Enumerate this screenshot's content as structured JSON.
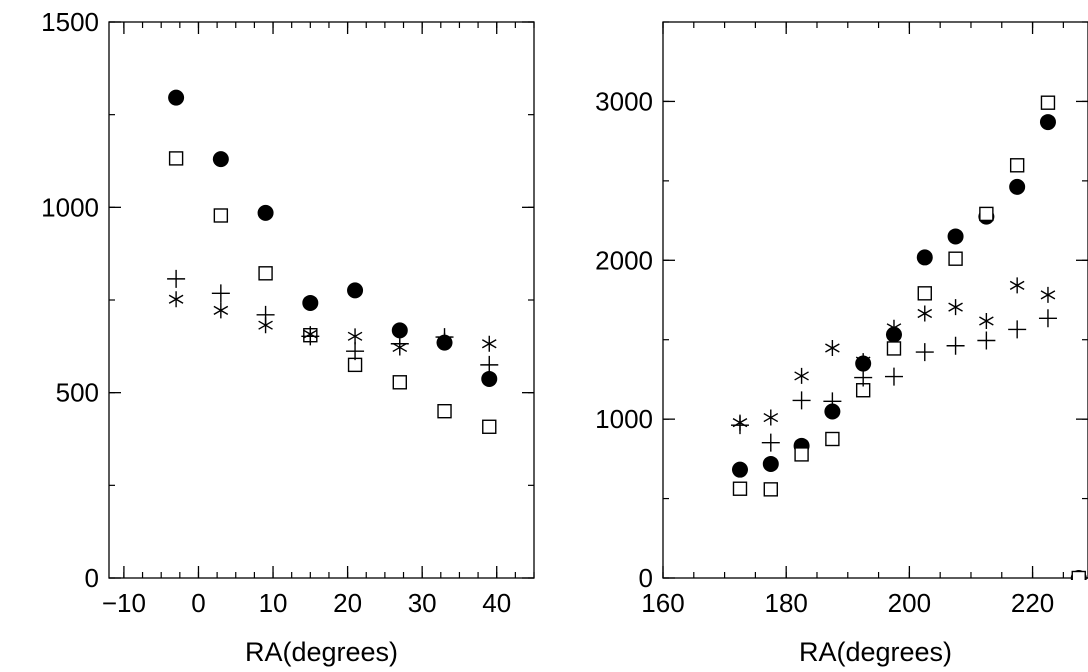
{
  "chart_data": [
    {
      "type": "scatter",
      "title": "",
      "xlabel": "RA(degrees)",
      "ylabel": "",
      "xlim": [
        -12,
        45
      ],
      "ylim": [
        0,
        1500
      ],
      "xticks": [
        -10,
        0,
        10,
        20,
        30,
        40
      ],
      "yticks": [
        0,
        500,
        1000,
        1500
      ],
      "x_minor_step": 2.5,
      "y_minor_step": 250,
      "grid": false,
      "legend": "none",
      "series": [
        {
          "marker": "filled-circle",
          "x": [
            -3,
            3,
            9,
            15,
            21,
            27,
            33,
            39
          ],
          "y": [
            1296,
            1130,
            985,
            742,
            776,
            668,
            635,
            537
          ]
        },
        {
          "marker": "open-square",
          "x": [
            -3,
            3,
            9,
            15,
            21,
            27,
            33,
            39
          ],
          "y": [
            1132,
            978,
            822,
            655,
            575,
            528,
            450,
            408
          ]
        },
        {
          "marker": "plus",
          "x": [
            -3,
            3,
            9,
            15,
            21,
            27,
            33,
            39
          ],
          "y": [
            807,
            768,
            710,
            652,
            612,
            632,
            650,
            575
          ]
        },
        {
          "marker": "asterisk",
          "x": [
            -3,
            3,
            9,
            15,
            21,
            27,
            33,
            39
          ],
          "y": [
            752,
            722,
            682,
            658,
            652,
            622,
            640,
            632
          ]
        }
      ]
    },
    {
      "type": "scatter",
      "title": "",
      "xlabel": "RA(degrees)",
      "ylabel": "",
      "xlim": [
        160,
        229
      ],
      "ylim": [
        0,
        3500
      ],
      "xticks": [
        160,
        180,
        200,
        220
      ],
      "yticks": [
        0,
        1000,
        2000,
        3000
      ],
      "x_minor_step": 5,
      "y_minor_step": 500,
      "grid": false,
      "legend": "none",
      "series": [
        {
          "marker": "filled-circle",
          "x": [
            172.5,
            177.5,
            182.5,
            187.5,
            192.5,
            197.5,
            202.5,
            207.5,
            212.5,
            217.5,
            222.5,
            227.5
          ],
          "y": [
            682,
            718,
            832,
            1048,
            1350,
            1532,
            2018,
            2150,
            2275,
            2462,
            2870,
            0
          ]
        },
        {
          "marker": "open-square",
          "x": [
            172.5,
            177.5,
            182.5,
            187.5,
            192.5,
            197.5,
            202.5,
            207.5,
            212.5,
            217.5,
            222.5,
            227.5
          ],
          "y": [
            562,
            558,
            778,
            875,
            1182,
            1445,
            1792,
            2010,
            2292,
            2598,
            2992,
            0
          ]
        },
        {
          "marker": "plus",
          "x": [
            172.5,
            177.5,
            182.5,
            187.5,
            192.5,
            197.5,
            202.5,
            207.5,
            212.5,
            217.5,
            222.5
          ],
          "y": [
            962,
            852,
            1118,
            1112,
            1262,
            1268,
            1422,
            1462,
            1495,
            1565,
            1635
          ]
        },
        {
          "marker": "asterisk",
          "x": [
            172.5,
            177.5,
            182.5,
            187.5,
            192.5,
            197.5,
            202.5,
            207.5,
            212.5,
            217.5,
            222.5
          ],
          "y": [
            978,
            1010,
            1272,
            1448,
            1365,
            1575,
            1665,
            1705,
            1618,
            1842,
            1782
          ]
        }
      ]
    }
  ]
}
